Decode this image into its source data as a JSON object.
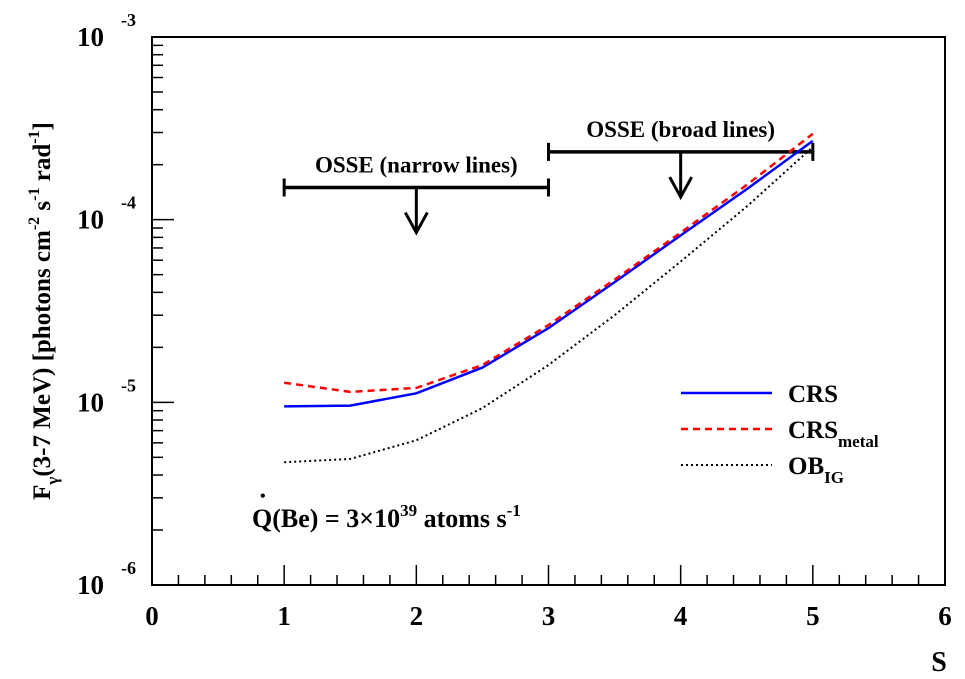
{
  "chart_data": {
    "type": "line",
    "xlabel": "S",
    "ylabel_parts": {
      "f": "F",
      "gamma": "γ",
      "main": "(3-7 MeV) [photons cm",
      "exp1": "-2",
      "s": " s",
      "exp2": "-1",
      "rad": " rad",
      "exp3": "-1",
      "close": "]"
    },
    "xlim": [
      0,
      6
    ],
    "ylim": [
      1e-06,
      0.001
    ],
    "yscale": "log",
    "x_ticks": [
      "0",
      "1",
      "2",
      "3",
      "4",
      "5",
      "6"
    ],
    "y_ticks": [
      {
        "base": "10",
        "exp": "-6"
      },
      {
        "base": "10",
        "exp": "-5"
      },
      {
        "base": "10",
        "exp": "-4"
      },
      {
        "base": "10",
        "exp": "-3"
      }
    ],
    "series": [
      {
        "name": "CRS",
        "color": "#0000ff",
        "style": "solid",
        "x": [
          1,
          1.5,
          2,
          2.5,
          3,
          3.5,
          4,
          4.5,
          5
        ],
        "y": [
          9.5e-06,
          9.6e-06,
          1.12e-05,
          1.55e-05,
          2.55e-05,
          4.55e-05,
          8.2e-05,
          0.000147,
          0.00027
        ]
      },
      {
        "name": "CRS",
        "sub": "metal",
        "color": "#ff0000",
        "style": "dashed",
        "x": [
          1,
          1.5,
          2,
          2.5,
          3,
          3.5,
          4,
          4.5,
          5
        ],
        "y": [
          1.28e-05,
          1.14e-05,
          1.2e-05,
          1.6e-05,
          2.65e-05,
          4.7e-05,
          8.5e-05,
          0.000155,
          0.000295
        ]
      },
      {
        "name": "OB",
        "sub": "IG",
        "color": "#000000",
        "style": "dotted",
        "x": [
          1,
          1.5,
          2,
          2.5,
          3,
          3.5,
          4,
          4.5,
          5
        ],
        "y": [
          4.7e-06,
          4.9e-06,
          6.2e-06,
          9.3e-06,
          1.6e-05,
          3e-05,
          5.9e-05,
          0.000118,
          0.00025
        ]
      }
    ],
    "limits": [
      {
        "label": "OSSE (narrow lines)",
        "x_range": [
          1,
          3
        ],
        "y": 0.00015,
        "arrow_x": 2,
        "arrow_to": 8.5e-05
      },
      {
        "label": "OSSE (broad lines)",
        "x_range": [
          3,
          5
        ],
        "y": 0.000235,
        "arrow_x": 4,
        "arrow_to": 0.000133
      }
    ],
    "annotation": {
      "q": "Q",
      "dot": "•",
      "main": "(Be) = 3×10",
      "exp": "39",
      "tail": " atoms s",
      "tail_exp": "-1"
    },
    "legend_position": "bottom-right"
  }
}
